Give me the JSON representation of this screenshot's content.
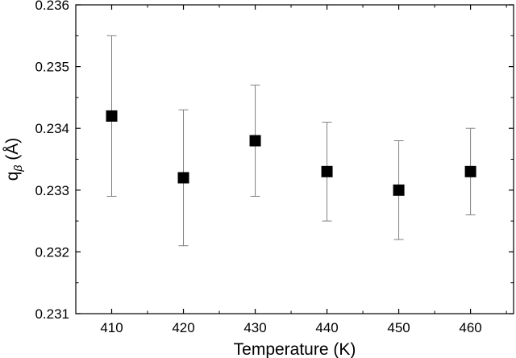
{
  "chart_data": {
    "type": "scatter",
    "xlabel": "Temperature (K)",
    "ylabel": {
      "base": "q",
      "subscript": "β",
      "unit": " (Å)"
    },
    "xlim": [
      405,
      466
    ],
    "ylim": [
      0.231,
      0.236
    ],
    "x_ticks": [
      410,
      420,
      430,
      440,
      450,
      460
    ],
    "x_tick_labels": [
      "410",
      "420",
      "430",
      "440",
      "450",
      "460"
    ],
    "y_ticks": [
      0.231,
      0.232,
      0.233,
      0.234,
      0.235,
      0.236
    ],
    "y_tick_labels": [
      "0.231",
      "0.232",
      "0.233",
      "0.234",
      "0.235",
      "0.236"
    ],
    "grid": false,
    "marker": "square",
    "marker_color": "#000000",
    "errorbar_color": "#808080",
    "points": [
      {
        "x": 410,
        "y": 0.2342,
        "y_low": 0.2329,
        "y_high": 0.2355
      },
      {
        "x": 420,
        "y": 0.2332,
        "y_low": 0.2321,
        "y_high": 0.2343
      },
      {
        "x": 430,
        "y": 0.2338,
        "y_low": 0.2329,
        "y_high": 0.2347
      },
      {
        "x": 440,
        "y": 0.2333,
        "y_low": 0.2325,
        "y_high": 0.2341
      },
      {
        "x": 450,
        "y": 0.233,
        "y_low": 0.2322,
        "y_high": 0.2338
      },
      {
        "x": 460,
        "y": 0.2333,
        "y_low": 0.2326,
        "y_high": 0.234
      }
    ]
  }
}
